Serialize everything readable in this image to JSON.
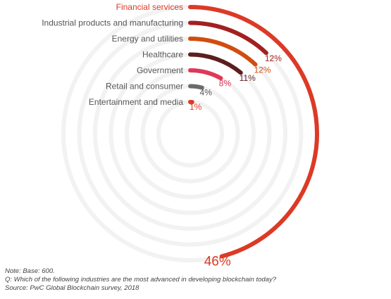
{
  "chart_data": {
    "type": "radial-bar",
    "unit": "%",
    "series": [
      {
        "label": "Financial services",
        "value": 46,
        "value_label": "46%",
        "color": "#dc3a26"
      },
      {
        "label": "Industrial products and manufacturing",
        "value": 12,
        "value_label": "12%",
        "color": "#a32020"
      },
      {
        "label": "Energy and utilities",
        "value": 12,
        "value_label": "12%",
        "color": "#d14d0f"
      },
      {
        "label": "Healthcare",
        "value": 11,
        "value_label": "11%",
        "color": "#5c1e1e"
      },
      {
        "label": "Government",
        "value": 8,
        "value_label": "8%",
        "color": "#e0385a"
      },
      {
        "label": "Retail and consumer",
        "value": 4,
        "value_label": "4%",
        "color": "#6b6b6b"
      },
      {
        "label": "Entertainment and media",
        "value": 1,
        "value_label": "1%",
        "color": "#dc3a26"
      }
    ],
    "track_color": "#f2f2f2",
    "highlight_label_color": "#dc3a26",
    "label_color": "#555555"
  },
  "notes": {
    "note": "Note: Base: 600.",
    "question": "Q: Which of the following industries are the most advanced in developing blockchain today?",
    "source": "Source: PwC Global Blockchain survey, 2018"
  }
}
